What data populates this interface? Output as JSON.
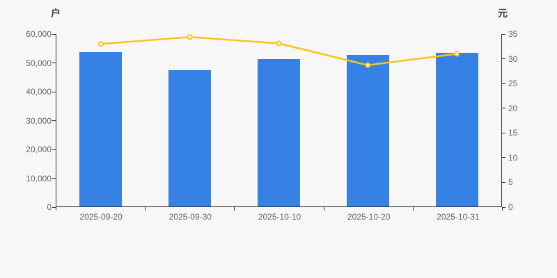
{
  "chart": {
    "background_color": "#f7f7f7",
    "axis_color": "#333333",
    "tick_label_color": "#666666",
    "unit_label_color": "#3c3c3c"
  },
  "chart_data": {
    "type": "bar",
    "title": "",
    "categories": [
      "2025-09-20",
      "2025-09-30",
      "2025-10-10",
      "2025-10-20",
      "2025-10-31"
    ],
    "series": [
      {
        "id": "bar-series",
        "type": "bar",
        "y_axis": "left",
        "color": "#3581e4",
        "values": [
          53400,
          47200,
          51100,
          52600,
          53200
        ]
      },
      {
        "id": "line-series",
        "type": "line",
        "y_axis": "right",
        "color": "#fbc31a",
        "marker": "hollow-circle",
        "marker_fill": "#ffffff",
        "values": [
          33.0,
          34.4,
          33.1,
          28.7,
          31.0
        ]
      }
    ],
    "left_axis": {
      "unit": "户",
      "min": 0,
      "max": 60000,
      "tick_step": 10000,
      "ticks": [
        "0",
        "10,000",
        "20,000",
        "30,000",
        "40,000",
        "50,000",
        "60,000"
      ]
    },
    "right_axis": {
      "unit": "元",
      "min": 0,
      "max": 35,
      "tick_step": 5,
      "ticks": [
        "0",
        "5",
        "10",
        "15",
        "20",
        "25",
        "30",
        "35"
      ]
    },
    "grid": false,
    "legend": false
  }
}
